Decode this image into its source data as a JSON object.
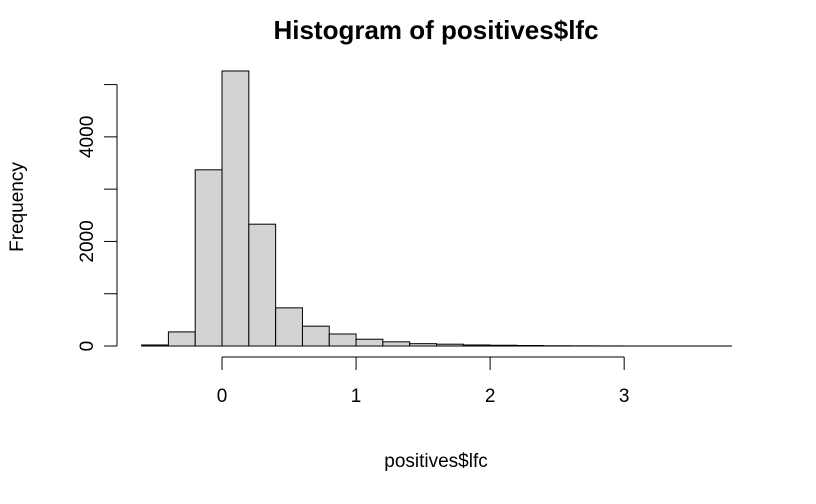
{
  "chart_data": {
    "type": "histogram",
    "title": "Histogram of positives$lfc",
    "x_label": "positives$lfc",
    "y_label": "Frequency",
    "bins": [
      -0.6,
      -0.4,
      -0.2,
      0,
      0.2,
      0.4,
      0.6,
      0.8,
      1.0,
      1.2,
      1.4,
      1.6,
      1.8,
      2.0,
      2.2,
      2.4,
      2.6,
      2.8,
      3.0,
      3.2,
      3.4,
      3.6,
      3.8
    ],
    "values": [
      20,
      270,
      3370,
      5260,
      2330,
      730,
      380,
      230,
      130,
      80,
      45,
      35,
      20,
      15,
      10,
      5,
      3,
      2,
      1,
      1,
      1,
      1
    ],
    "color": "#d3d3d3",
    "xlim": [
      -0.776,
      3.976
    ],
    "xticks": [
      0,
      1,
      2,
      3
    ],
    "ylim": [
      -210,
      5470
    ],
    "yticks": [
      0,
      {
        "value": 1000,
        "label": null
      },
      2000,
      {
        "value": 3000,
        "label": null
      },
      4000,
      {
        "value": 5000,
        "label": null
      }
    ]
  }
}
